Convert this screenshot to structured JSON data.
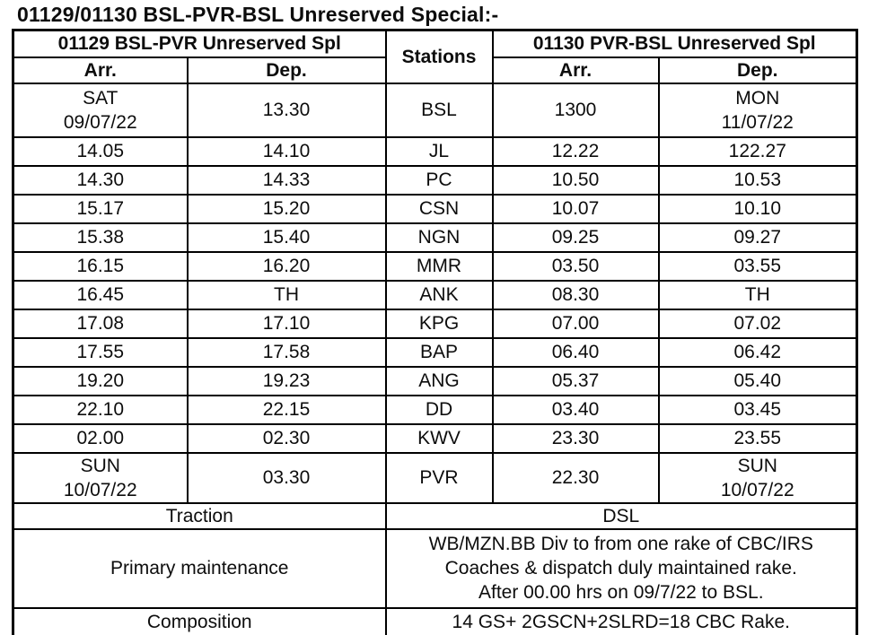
{
  "title": "01129/01130 BSL-PVR-BSL Unreserved Special:-",
  "table": {
    "header": {
      "train_outbound": "01129 BSL-PVR Unreserved Spl",
      "stations_label": "Stations",
      "train_return": "01130 PVR-BSL Unreserved Spl",
      "arr_label": "Arr.",
      "dep_label": "Dep."
    },
    "rows": [
      {
        "arr1": "SAT\n09/07/22",
        "dep1": "13.30",
        "station": "BSL",
        "arr2": "1300",
        "dep2": "MON\n11/07/22"
      },
      {
        "arr1": "14.05",
        "dep1": "14.10",
        "station": "JL",
        "arr2": "12.22",
        "dep2": "122.27"
      },
      {
        "arr1": "14.30",
        "dep1": "14.33",
        "station": "PC",
        "arr2": "10.50",
        "dep2": "10.53"
      },
      {
        "arr1": "15.17",
        "dep1": "15.20",
        "station": "CSN",
        "arr2": "10.07",
        "dep2": "10.10"
      },
      {
        "arr1": "15.38",
        "dep1": "15.40",
        "station": "NGN",
        "arr2": "09.25",
        "dep2": "09.27"
      },
      {
        "arr1": "16.15",
        "dep1": "16.20",
        "station": "MMR",
        "arr2": "03.50",
        "dep2": "03.55"
      },
      {
        "arr1": "16.45",
        "dep1": "TH",
        "station": "ANK",
        "arr2": "08.30",
        "dep2": "TH"
      },
      {
        "arr1": "17.08",
        "dep1": "17.10",
        "station": "KPG",
        "arr2": "07.00",
        "dep2": "07.02"
      },
      {
        "arr1": "17.55",
        "dep1": "17.58",
        "station": "BAP",
        "arr2": "06.40",
        "dep2": "06.42"
      },
      {
        "arr1": "19.20",
        "dep1": "19.23",
        "station": "ANG",
        "arr2": "05.37",
        "dep2": "05.40"
      },
      {
        "arr1": "22.10",
        "dep1": "22.15",
        "station": "DD",
        "arr2": "03.40",
        "dep2": "03.45"
      },
      {
        "arr1": "02.00",
        "dep1": "02.30",
        "station": "KWV",
        "arr2": "23.30",
        "dep2": "23.55"
      },
      {
        "arr1": "SUN\n10/07/22",
        "dep1": "03.30",
        "station": "PVR",
        "arr2": "22.30",
        "dep2": "SUN\n10/07/22"
      }
    ],
    "info": {
      "traction": {
        "label": "Traction",
        "value": "DSL"
      },
      "primary_maintenance": {
        "label": "Primary maintenance",
        "value": "WB/MZN.BB Div to from one rake of CBC/IRS\nCoaches & dispatch duly maintained rake.\nAfter 00.00 hrs on 09/7/22 to BSL."
      },
      "composition": {
        "label": "Composition",
        "value": "14 GS+ 2GSCN+2SLRD=18 CBC Rake."
      }
    }
  }
}
